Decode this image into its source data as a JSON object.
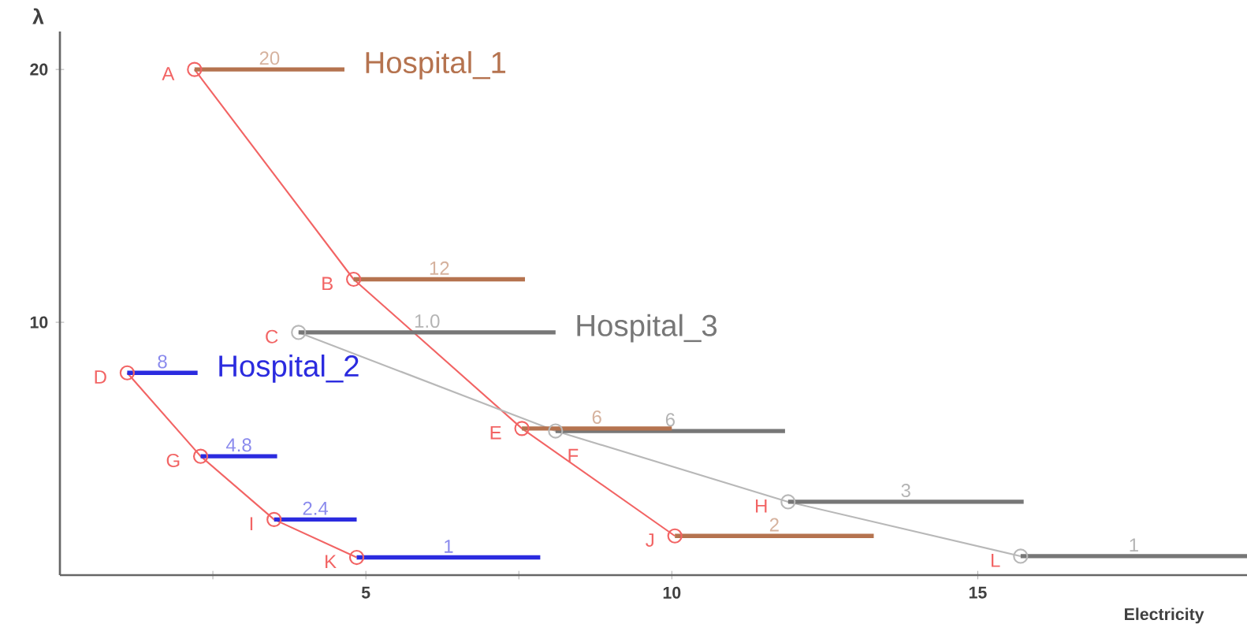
{
  "chart_data": {
    "type": "line",
    "xlabel": "Electricity",
    "ylabel": "λ",
    "xlim": [
      0,
      19.4
    ],
    "ylim": [
      0,
      21.5
    ],
    "xticks": [
      {
        "value": 2.5,
        "label": null
      },
      5,
      {
        "value": 7.5,
        "label": null
      },
      10,
      15
    ],
    "yticks": [
      10,
      20
    ],
    "marker": "circle",
    "series": [
      {
        "color": "#f26464",
        "x": [
          2.2,
          4.8,
          7.55,
          10.05
        ],
        "values": [
          20,
          11.7,
          5.8,
          1.55
        ]
      },
      {
        "color": "#f26464",
        "x": [
          1.1,
          2.3,
          3.5,
          4.85
        ],
        "values": [
          8.0,
          4.7,
          2.2,
          0.7
        ]
      },
      {
        "color": "#b8b8b8",
        "x": [
          3.9,
          8.1,
          11.9,
          15.7
        ],
        "values": [
          9.6,
          5.7,
          2.9,
          0.75
        ]
      },
      {
        "name": "1.0",
        "color": "#777777",
        "marker": "none",
        "x": [
          3.9,
          8.1
        ],
        "values": [
          9.6,
          9.6
        ]
      },
      {
        "name": "6",
        "color": "#777777",
        "marker": "none",
        "x": [
          8.1,
          11.85
        ],
        "values": [
          5.7,
          5.7
        ]
      },
      {
        "name": "3",
        "color": "#777777",
        "marker": "none",
        "x": [
          11.9,
          15.75
        ],
        "values": [
          2.9,
          2.9
        ]
      },
      {
        "name": "1",
        "color": "#777777",
        "marker": "none",
        "x": [
          15.7,
          19.4
        ],
        "values": [
          0.75,
          0.75
        ]
      },
      {
        "name": "20",
        "color": "#b5734f",
        "marker": "none",
        "x": [
          2.2,
          4.65
        ],
        "values": [
          20,
          20
        ]
      },
      {
        "name": "12",
        "color": "#b5734f",
        "marker": "none",
        "x": [
          4.8,
          7.6
        ],
        "values": [
          11.7,
          11.7
        ]
      },
      {
        "name": "6",
        "color": "#b5734f",
        "marker": "none",
        "x": [
          7.55,
          10.0
        ],
        "values": [
          5.8,
          5.8
        ]
      },
      {
        "name": "2",
        "color": "#b5734f",
        "marker": "none",
        "x": [
          10.05,
          13.3
        ],
        "values": [
          1.55,
          1.55
        ]
      },
      {
        "name": "8",
        "color": "#2b2bdf",
        "marker": "none",
        "x": [
          1.1,
          2.25
        ],
        "values": [
          8.0,
          8.0
        ]
      },
      {
        "name": "4.8",
        "color": "#2b2bdf",
        "marker": "none",
        "x": [
          2.3,
          3.55
        ],
        "values": [
          4.7,
          4.7
        ]
      },
      {
        "name": "2.4",
        "color": "#2b2bdf",
        "marker": "none",
        "x": [
          3.5,
          4.85
        ],
        "values": [
          2.2,
          2.2
        ]
      },
      {
        "name": "1",
        "color": "#2b2bdf",
        "marker": "none",
        "x": [
          4.85,
          7.85
        ],
        "values": [
          0.7,
          0.7
        ]
      }
    ],
    "annotations": [
      {
        "text": "Hospital_1",
        "x": 4.65,
        "y": 20
      },
      {
        "text": "Hospital_3",
        "x": 8.1,
        "y": 9.6
      },
      {
        "text": "Hospital_2",
        "x": 2.25,
        "y": 8.0
      },
      {
        "text": "A",
        "x": 2.2,
        "y": 20
      },
      {
        "text": "B",
        "x": 4.8,
        "y": 11.7
      },
      {
        "text": "C",
        "x": 3.9,
        "y": 9.6
      },
      {
        "text": "D",
        "x": 1.1,
        "y": 8.0
      },
      {
        "text": "E",
        "x": 7.55,
        "y": 5.8
      },
      {
        "text": "F",
        "x": 8.1,
        "y": 5.7
      },
      {
        "text": "G",
        "x": 2.3,
        "y": 4.7
      },
      {
        "text": "H",
        "x": 11.9,
        "y": 2.9
      },
      {
        "text": "I",
        "x": 3.5,
        "y": 2.2
      },
      {
        "text": "J",
        "x": 10.05,
        "y": 1.55
      },
      {
        "text": "K",
        "x": 4.85,
        "y": 0.7
      },
      {
        "text": "L",
        "x": 15.7,
        "y": 0.75
      }
    ]
  }
}
